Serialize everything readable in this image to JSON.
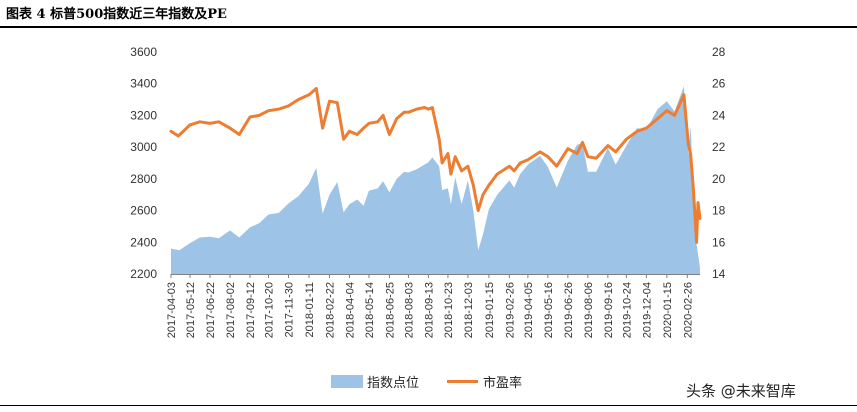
{
  "header": {
    "title": "图表 4 标普500指数近三年指数及PE"
  },
  "watermark": "头条 @未来智库",
  "colors": {
    "area": "#9DC3E6",
    "line": "#ED7D31"
  },
  "chart_data": {
    "type": "area+line",
    "title": "图表 4 标普500指数近三年指数及PE",
    "legend": [
      {
        "name": "指数点位",
        "type": "area",
        "color": "#9DC3E6"
      },
      {
        "name": "市盈率",
        "type": "line",
        "color": "#ED7D31"
      }
    ],
    "legend_position": "bottom-center",
    "y_left": {
      "ylim": [
        2200,
        3600
      ],
      "ticks": [
        "2200",
        "2400",
        "2600",
        "2800",
        "3000",
        "3200",
        "3400",
        "3600"
      ]
    },
    "y_right": {
      "ylim": [
        14,
        28
      ],
      "ticks": [
        "14",
        "16",
        "18",
        "20",
        "22",
        "24",
        "26",
        "28"
      ]
    },
    "x_range": [
      "2017-04-03",
      "2020-03-23"
    ],
    "x_ticks": [
      "2017-04-03",
      "2017-05-12",
      "2017-06-22",
      "2017-08-02",
      "2017-09-12",
      "2017-10-20",
      "2017-11-30",
      "2018-01-11",
      "2018-02-22",
      "2018-04-04",
      "2018-05-14",
      "2018-06-25",
      "2018-08-03",
      "2018-09-13",
      "2018-10-23",
      "2018-12-03",
      "2019-01-15",
      "2019-02-26",
      "2019-04-05",
      "2019-05-16",
      "2019-06-26",
      "2019-08-06",
      "2019-09-16",
      "2019-10-24",
      "2019-12-04",
      "2020-01-15",
      "2020-02-26"
    ],
    "index_series": {
      "name": "指数点位",
      "points": [
        [
          "2017-04-03",
          2360
        ],
        [
          "2017-04-20",
          2350
        ],
        [
          "2017-05-12",
          2395
        ],
        [
          "2017-06-01",
          2430
        ],
        [
          "2017-06-22",
          2435
        ],
        [
          "2017-07-10",
          2425
        ],
        [
          "2017-08-02",
          2475
        ],
        [
          "2017-08-21",
          2430
        ],
        [
          "2017-09-12",
          2495
        ],
        [
          "2017-10-01",
          2520
        ],
        [
          "2017-10-20",
          2575
        ],
        [
          "2017-11-10",
          2585
        ],
        [
          "2017-11-30",
          2645
        ],
        [
          "2017-12-20",
          2690
        ],
        [
          "2018-01-11",
          2770
        ],
        [
          "2018-01-26",
          2870
        ],
        [
          "2018-02-08",
          2580
        ],
        [
          "2018-02-22",
          2700
        ],
        [
          "2018-03-10",
          2780
        ],
        [
          "2018-03-23",
          2590
        ],
        [
          "2018-04-04",
          2640
        ],
        [
          "2018-04-20",
          2670
        ],
        [
          "2018-05-03",
          2630
        ],
        [
          "2018-05-14",
          2725
        ],
        [
          "2018-06-01",
          2740
        ],
        [
          "2018-06-12",
          2785
        ],
        [
          "2018-06-25",
          2715
        ],
        [
          "2018-07-10",
          2800
        ],
        [
          "2018-07-25",
          2845
        ],
        [
          "2018-08-03",
          2840
        ],
        [
          "2018-08-20",
          2860
        ],
        [
          "2018-09-05",
          2890
        ],
        [
          "2018-09-13",
          2905
        ],
        [
          "2018-09-21",
          2935
        ],
        [
          "2018-10-05",
          2880
        ],
        [
          "2018-10-11",
          2730
        ],
        [
          "2018-10-23",
          2740
        ],
        [
          "2018-10-29",
          2640
        ],
        [
          "2018-11-07",
          2810
        ],
        [
          "2018-11-20",
          2640
        ],
        [
          "2018-12-03",
          2790
        ],
        [
          "2018-12-14",
          2600
        ],
        [
          "2018-12-24",
          2350
        ],
        [
          "2019-01-03",
          2450
        ],
        [
          "2019-01-15",
          2610
        ],
        [
          "2019-02-01",
          2700
        ],
        [
          "2019-02-26",
          2790
        ],
        [
          "2019-03-08",
          2745
        ],
        [
          "2019-03-20",
          2830
        ],
        [
          "2019-04-05",
          2890
        ],
        [
          "2019-04-30",
          2945
        ],
        [
          "2019-05-16",
          2875
        ],
        [
          "2019-06-03",
          2745
        ],
        [
          "2019-06-26",
          2915
        ],
        [
          "2019-07-15",
          3015
        ],
        [
          "2019-07-26",
          3025
        ],
        [
          "2019-08-06",
          2845
        ],
        [
          "2019-08-23",
          2845
        ],
        [
          "2019-09-16",
          2995
        ],
        [
          "2019-10-02",
          2890
        ],
        [
          "2019-10-24",
          3010
        ],
        [
          "2019-11-15",
          3120
        ],
        [
          "2019-12-04",
          3110
        ],
        [
          "2019-12-27",
          3240
        ],
        [
          "2020-01-15",
          3290
        ],
        [
          "2020-01-31",
          3225
        ],
        [
          "2020-02-19",
          3385
        ],
        [
          "2020-02-28",
          2950
        ],
        [
          "2020-03-04",
          3130
        ],
        [
          "2020-03-09",
          2745
        ],
        [
          "2020-03-16",
          2385
        ],
        [
          "2020-03-23",
          2240
        ]
      ]
    },
    "pe_series": {
      "name": "市盈率",
      "points": [
        [
          "2017-04-03",
          23.0
        ],
        [
          "2017-04-18",
          22.7
        ],
        [
          "2017-05-12",
          23.4
        ],
        [
          "2017-06-01",
          23.6
        ],
        [
          "2017-06-22",
          23.5
        ],
        [
          "2017-07-10",
          23.6
        ],
        [
          "2017-08-02",
          23.2
        ],
        [
          "2017-08-21",
          22.8
        ],
        [
          "2017-09-12",
          23.9
        ],
        [
          "2017-10-01",
          24.0
        ],
        [
          "2017-10-20",
          24.3
        ],
        [
          "2017-11-10",
          24.4
        ],
        [
          "2017-11-30",
          24.6
        ],
        [
          "2017-12-20",
          25.0
        ],
        [
          "2018-01-11",
          25.3
        ],
        [
          "2018-01-26",
          25.7
        ],
        [
          "2018-02-08",
          23.2
        ],
        [
          "2018-02-22",
          24.9
        ],
        [
          "2018-03-10",
          24.8
        ],
        [
          "2018-03-23",
          22.5
        ],
        [
          "2018-04-04",
          23.0
        ],
        [
          "2018-04-20",
          22.8
        ],
        [
          "2018-05-03",
          23.2
        ],
        [
          "2018-05-14",
          23.5
        ],
        [
          "2018-06-01",
          23.6
        ],
        [
          "2018-06-12",
          24.0
        ],
        [
          "2018-06-25",
          22.8
        ],
        [
          "2018-07-10",
          23.8
        ],
        [
          "2018-07-25",
          24.2
        ],
        [
          "2018-08-03",
          24.2
        ],
        [
          "2018-08-20",
          24.4
        ],
        [
          "2018-09-05",
          24.5
        ],
        [
          "2018-09-13",
          24.4
        ],
        [
          "2018-09-21",
          24.5
        ],
        [
          "2018-10-05",
          22.5
        ],
        [
          "2018-10-11",
          21.0
        ],
        [
          "2018-10-23",
          21.6
        ],
        [
          "2018-10-29",
          20.3
        ],
        [
          "2018-11-07",
          21.4
        ],
        [
          "2018-11-20",
          20.5
        ],
        [
          "2018-12-03",
          20.8
        ],
        [
          "2018-12-14",
          19.6
        ],
        [
          "2018-12-24",
          18.0
        ],
        [
          "2019-01-03",
          19.0
        ],
        [
          "2019-01-15",
          19.6
        ],
        [
          "2019-02-01",
          20.3
        ],
        [
          "2019-02-26",
          20.8
        ],
        [
          "2019-03-08",
          20.5
        ],
        [
          "2019-03-20",
          21.0
        ],
        [
          "2019-04-05",
          21.2
        ],
        [
          "2019-04-30",
          21.7
        ],
        [
          "2019-05-16",
          21.4
        ],
        [
          "2019-06-03",
          20.8
        ],
        [
          "2019-06-26",
          21.9
        ],
        [
          "2019-07-15",
          21.6
        ],
        [
          "2019-07-26",
          22.3
        ],
        [
          "2019-08-06",
          21.4
        ],
        [
          "2019-08-23",
          21.3
        ],
        [
          "2019-09-16",
          22.1
        ],
        [
          "2019-10-02",
          21.7
        ],
        [
          "2019-10-24",
          22.5
        ],
        [
          "2019-11-15",
          23.0
        ],
        [
          "2019-12-04",
          23.2
        ],
        [
          "2019-12-27",
          23.8
        ],
        [
          "2020-01-15",
          24.3
        ],
        [
          "2020-01-31",
          24.0
        ],
        [
          "2020-02-19",
          25.3
        ],
        [
          "2020-02-28",
          22.2
        ],
        [
          "2020-03-04",
          21.5
        ],
        [
          "2020-03-09",
          19.5
        ],
        [
          "2020-03-16",
          16.0
        ],
        [
          "2020-03-19",
          18.5
        ],
        [
          "2020-03-23",
          17.5
        ]
      ]
    }
  }
}
